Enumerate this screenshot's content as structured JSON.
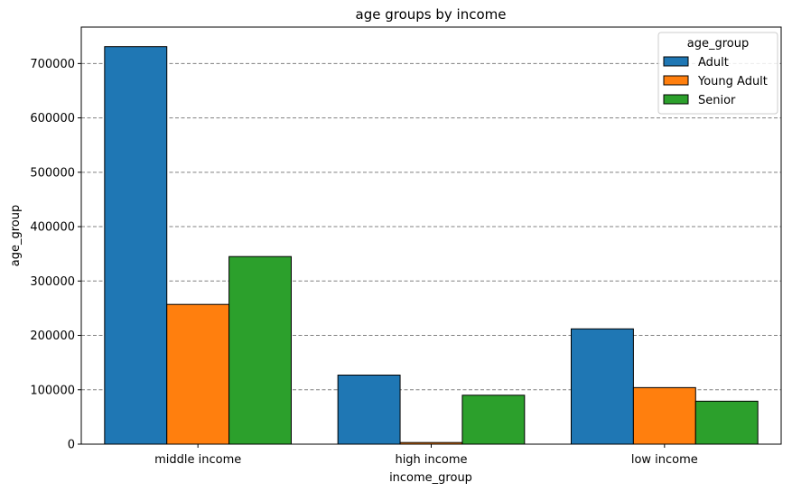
{
  "chart_data": {
    "type": "bar",
    "title": "age groups by income",
    "xlabel": "income_group",
    "ylabel": "age_group",
    "categories": [
      "middle income",
      "high income",
      "low income"
    ],
    "series": [
      {
        "name": "Adult",
        "values": [
          731000,
          127000,
          212000
        ],
        "color": "#1f77b4"
      },
      {
        "name": "Young Adult",
        "values": [
          257000,
          3000,
          104000
        ],
        "color": "#ff7f0e"
      },
      {
        "name": "Senior",
        "values": [
          345000,
          90000,
          79000
        ],
        "color": "#2ca02c"
      }
    ],
    "ylim": [
      0,
      767000
    ],
    "yticks": [
      0,
      100000,
      200000,
      300000,
      400000,
      500000,
      600000,
      700000
    ],
    "ytick_labels": [
      "0",
      "100000",
      "200000",
      "300000",
      "400000",
      "500000",
      "600000",
      "700000"
    ],
    "grid": "y-dashed",
    "legend": {
      "title": "age_group",
      "placement": "top-right"
    }
  }
}
